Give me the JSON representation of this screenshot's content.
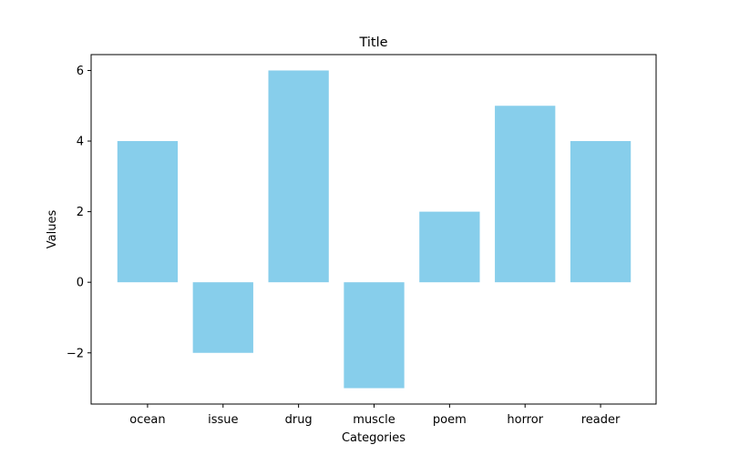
{
  "chart_data": {
    "type": "bar",
    "title": "Title",
    "xlabel": "Categories",
    "ylabel": "Values",
    "categories": [
      "ocean",
      "issue",
      "drug",
      "muscle",
      "poem",
      "horror",
      "reader"
    ],
    "values": [
      4,
      -2,
      6,
      -3,
      2,
      5,
      4
    ],
    "ylim": [
      -3.45,
      6.45
    ],
    "yticks": [
      -2,
      0,
      2,
      4,
      6
    ],
    "bar_color": "#87ceeb",
    "grid": false,
    "legend": "none"
  }
}
